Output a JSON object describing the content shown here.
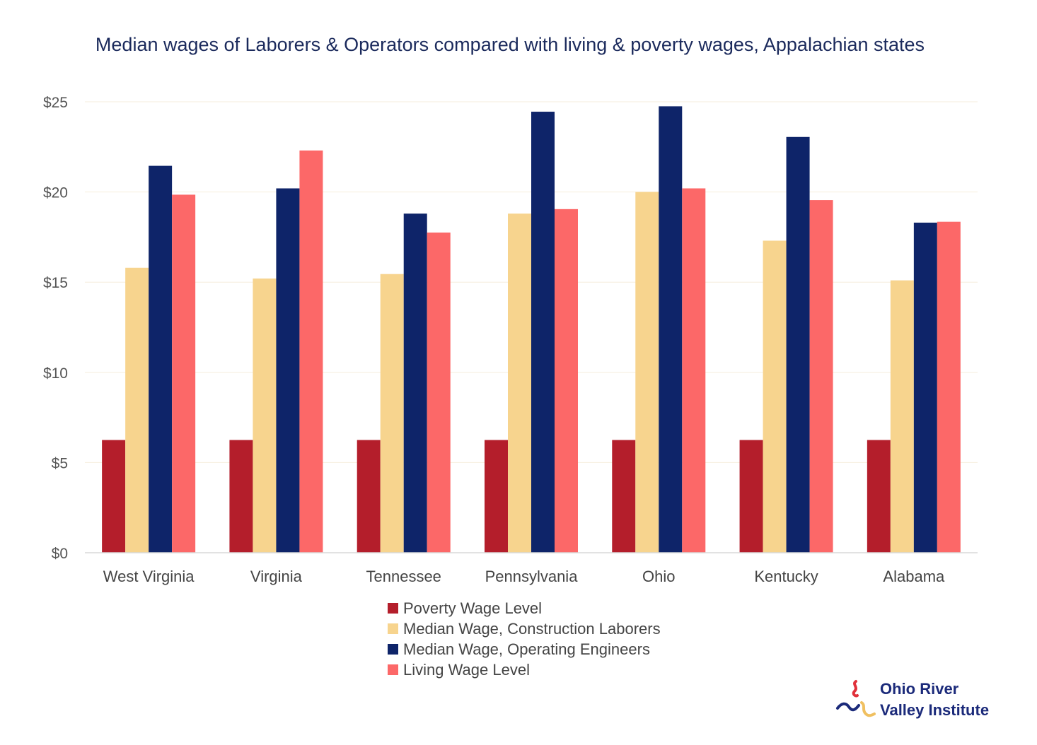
{
  "chart_data": {
    "type": "bar",
    "title": "Median wages of Laborers & Operators compared with living & poverty wages, Appalachian states",
    "categories": [
      "West Virginia",
      "Virginia",
      "Tennessee",
      "Pennsylvania",
      "Ohio",
      "Kentucky",
      "Alabama"
    ],
    "series": [
      {
        "name": "Poverty Wage Level",
        "color": "#b41e2b",
        "values": [
          6.25,
          6.25,
          6.25,
          6.25,
          6.25,
          6.25,
          6.25
        ]
      },
      {
        "name": "Median Wage, Construction Laborers",
        "color": "#f7d48e",
        "values": [
          15.8,
          15.2,
          15.45,
          18.8,
          20.0,
          17.3,
          15.1
        ]
      },
      {
        "name": "Median Wage, Operating Engineers",
        "color": "#0e2469",
        "values": [
          21.45,
          20.2,
          18.8,
          24.45,
          24.75,
          23.05,
          18.3
        ]
      },
      {
        "name": "Living Wage Level",
        "color": "#fc6868",
        "values": [
          19.85,
          22.3,
          17.75,
          19.05,
          20.2,
          19.55,
          18.35
        ]
      }
    ],
    "y_ticks": [
      "$0",
      "$5",
      "$10",
      "$15",
      "$20",
      "$25"
    ],
    "ylim": [
      0,
      25
    ],
    "grid": true,
    "legend_position": "bottom"
  },
  "logo": {
    "line1": "Ohio River",
    "line2": "Valley Institute"
  }
}
